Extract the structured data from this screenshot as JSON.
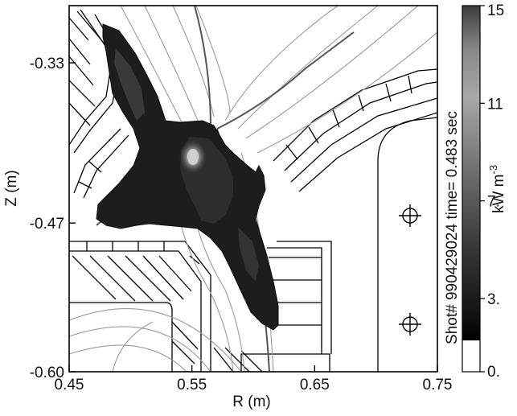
{
  "chart_data": {
    "type": "heatmap",
    "xlabel": "R (m)",
    "ylabel": "Z (m)",
    "xlim": [
      0.45,
      0.75
    ],
    "ylim": [
      -0.6,
      -0.28
    ],
    "x_ticks": [
      "0.45",
      "0.55",
      "0.65",
      "0.75"
    ],
    "y_ticks": [
      "-0.33",
      "-0.47",
      "-0.60"
    ],
    "x_tick_values": [
      0.45,
      0.55,
      0.65,
      0.75
    ],
    "y_tick_values": [
      -0.33,
      -0.47,
      -0.6
    ],
    "side_title": "Shot# 990429024 time= 0.483 sec",
    "colorbar": {
      "unit_label": "kW m",
      "unit_exponent": "-3",
      "ticks": [
        "15",
        "11",
        "7.",
        "3.",
        "0."
      ],
      "tick_values": [
        15,
        11,
        7,
        3,
        0
      ],
      "range": [
        0,
        15
      ],
      "colormap": "grayscale, white (0) to black (low) to light gray (15)"
    },
    "emission_peak_r_z": [
      0.53,
      -0.415
    ],
    "probe_markers": [
      {
        "r": 0.735,
        "z": -0.478
      },
      {
        "r": 0.735,
        "z": -0.568
      }
    ]
  },
  "colors": {
    "axis": "#000000",
    "flux_lines": "#9a9a9a",
    "separatrix": "#555555",
    "emission_dark": "#1c1c1c",
    "emission_peak": "#c8c8c8"
  }
}
